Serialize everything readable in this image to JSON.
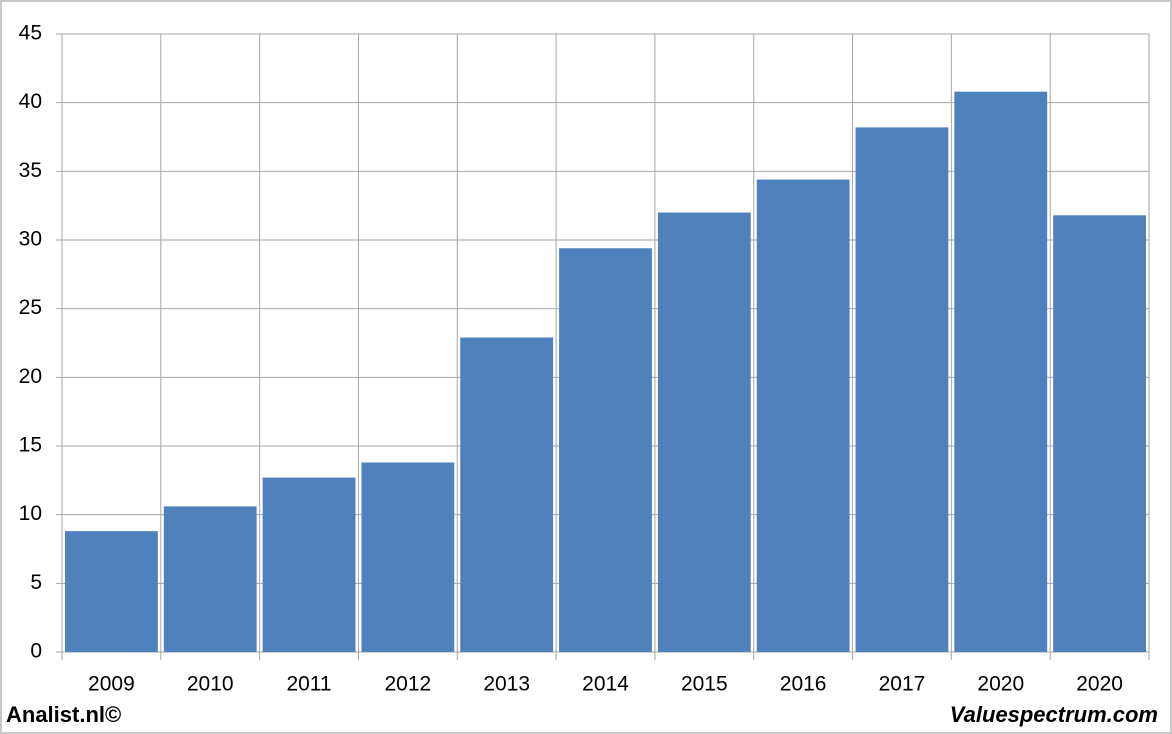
{
  "chart_data": {
    "type": "bar",
    "categories": [
      "2009",
      "2010",
      "2011",
      "2012",
      "2013",
      "2014",
      "2015",
      "2016",
      "2017",
      "2020",
      "2020"
    ],
    "values": [
      8.8,
      10.6,
      12.7,
      13.8,
      22.9,
      29.4,
      32.0,
      34.4,
      38.2,
      40.8,
      31.8
    ],
    "color": "#4f81bd",
    "ylim": [
      0,
      45
    ],
    "yticks": [
      0,
      5,
      10,
      15,
      20,
      25,
      30,
      35,
      40,
      45
    ],
    "grid": true
  },
  "footer": {
    "left": "Analist.nl©",
    "right": "Valuespectrum.com"
  }
}
